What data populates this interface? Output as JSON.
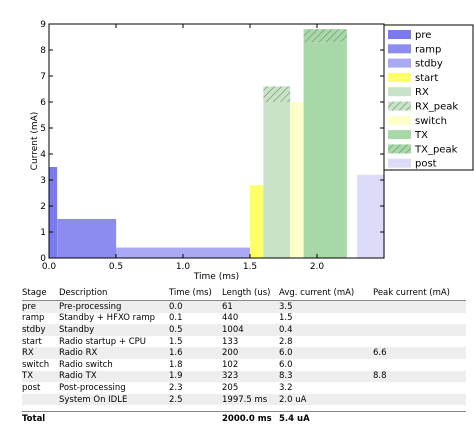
{
  "chart_data": {
    "type": "bar",
    "xlabel": "Time (ms)",
    "ylabel": "Current (mA)",
    "xlim": [
      0.0,
      2.5
    ],
    "ylim": [
      0,
      9
    ],
    "xticks": [
      "0.0",
      "0.5",
      "1.0",
      "1.5",
      "2.0"
    ],
    "yticks": [
      "0",
      "1",
      "2",
      "3",
      "4",
      "5",
      "6",
      "7",
      "8",
      "9"
    ],
    "legend_position": "right",
    "stages": [
      {
        "name": "pre",
        "start": 0.0,
        "length": 0.061,
        "current": 3.5,
        "peak": null,
        "color": "#7b7bef"
      },
      {
        "name": "ramp",
        "start": 0.061,
        "length": 0.44,
        "current": 1.5,
        "peak": null,
        "color": "#8c8cf0"
      },
      {
        "name": "stdby",
        "start": 0.5,
        "length": 1.004,
        "current": 0.4,
        "peak": null,
        "color": "#aaaaf4"
      },
      {
        "name": "start",
        "start": 1.5,
        "length": 0.133,
        "current": 2.8,
        "peak": null,
        "color": "#ffff66"
      },
      {
        "name": "RX",
        "start": 1.6,
        "length": 0.2,
        "current": 6.0,
        "peak": 6.6,
        "color": "#c9e3c9"
      },
      {
        "name": "switch",
        "start": 1.8,
        "length": 0.102,
        "current": 6.0,
        "peak": null,
        "color": "#ffffcc"
      },
      {
        "name": "TX",
        "start": 1.9,
        "length": 0.323,
        "current": 8.3,
        "peak": 8.8,
        "color": "#a8d8a8"
      },
      {
        "name": "post",
        "start": 2.3,
        "length": 0.205,
        "current": 3.2,
        "peak": null,
        "color": "#dcdcf8"
      }
    ],
    "legend": [
      {
        "label": "pre",
        "color": "#7b7bef",
        "hatch": false
      },
      {
        "label": "ramp",
        "color": "#8c8cf0",
        "hatch": false
      },
      {
        "label": "stdby",
        "color": "#aaaaf4",
        "hatch": false
      },
      {
        "label": "start",
        "color": "#ffff66",
        "hatch": false
      },
      {
        "label": "RX",
        "color": "#c9e3c9",
        "hatch": false
      },
      {
        "label": "RX_peak",
        "color": "#c9e3c9",
        "hatch": true
      },
      {
        "label": "switch",
        "color": "#ffffcc",
        "hatch": false
      },
      {
        "label": "TX",
        "color": "#a8d8a8",
        "hatch": false
      },
      {
        "label": "TX_peak",
        "color": "#a8d8a8",
        "hatch": true
      },
      {
        "label": "post",
        "color": "#dcdcf8",
        "hatch": false
      }
    ]
  },
  "table": {
    "headers": [
      "Stage",
      "Description",
      "Time (ms)",
      "Length (us)",
      "Avg. current (mA)",
      "Peak current (mA)"
    ],
    "rows": [
      [
        "pre",
        "Pre-processing",
        "0.0",
        "61",
        "3.5",
        ""
      ],
      [
        "ramp",
        "Standby + HFXO ramp",
        "0.1",
        "440",
        "1.5",
        ""
      ],
      [
        "stdby",
        "Standby",
        "0.5",
        "1004",
        "0.4",
        ""
      ],
      [
        "start",
        "Radio startup + CPU",
        "1.5",
        "133",
        "2.8",
        ""
      ],
      [
        "RX",
        "Radio RX",
        "1.6",
        "200",
        "6.0",
        "6.6"
      ],
      [
        "switch",
        "Radio switch",
        "1.8",
        "102",
        "6.0",
        ""
      ],
      [
        "TX",
        "Radio TX",
        "1.9",
        "323",
        "8.3",
        "8.8"
      ],
      [
        "post",
        "Post-processing",
        "2.3",
        "205",
        "3.2",
        ""
      ],
      [
        "",
        "System On IDLE",
        "2.5",
        "1997.5 ms",
        "2.0 uA",
        ""
      ]
    ],
    "total": [
      "Total",
      "",
      "",
      "2000.0 ms",
      "5.4 uA",
      ""
    ]
  }
}
